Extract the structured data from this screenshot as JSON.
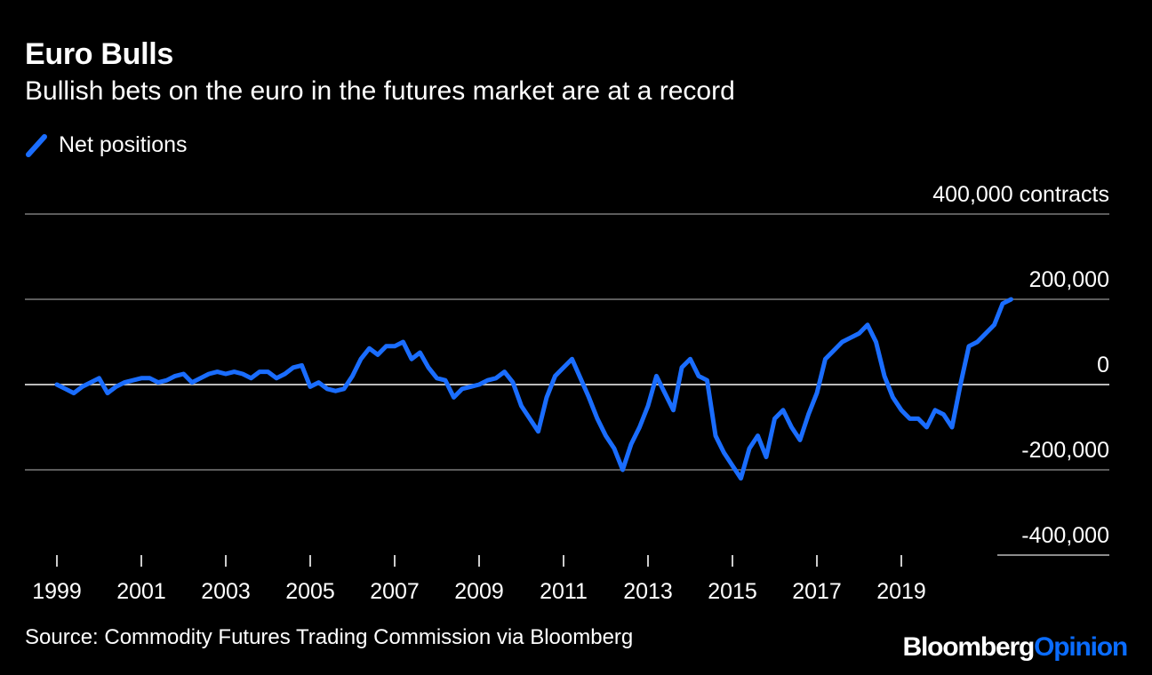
{
  "colors": {
    "line": "#1a6dff",
    "grid": "#7a7a7a",
    "background": "#000000",
    "brand_accent": "#0a6cff"
  },
  "chart_data": {
    "type": "line",
    "title": "Euro Bulls",
    "subtitle": "Bullish bets on the euro in the futures market are at a record",
    "ylabel": "",
    "xlabel": "",
    "ylim": [
      -400000,
      400000
    ],
    "xlim": [
      1999,
      2021.9
    ],
    "y_ticks": [
      400000,
      200000,
      0,
      -200000,
      -400000
    ],
    "y_tick_labels": [
      "400,000 contracts",
      "200,000",
      "0",
      "-200,000",
      "-400,000"
    ],
    "x_ticks": [
      1999,
      2001,
      2003,
      2005,
      2007,
      2009,
      2011,
      2013,
      2015,
      2017,
      2019
    ],
    "x_tick_labels": [
      "1999",
      "2001",
      "2003",
      "2005",
      "2007",
      "2009",
      "2011",
      "2013",
      "2015",
      "2017",
      "2019"
    ],
    "grid": true,
    "legend_position": "top-left",
    "series": [
      {
        "name": "Net positions",
        "x": [
          1999.0,
          1999.2,
          1999.4,
          1999.6,
          1999.8,
          2000.0,
          2000.2,
          2000.4,
          2000.6,
          2000.8,
          2001.0,
          2001.2,
          2001.4,
          2001.6,
          2001.8,
          2002.0,
          2002.2,
          2002.4,
          2002.6,
          2002.8,
          2003.0,
          2003.2,
          2003.4,
          2003.6,
          2003.8,
          2004.0,
          2004.2,
          2004.4,
          2004.6,
          2004.8,
          2005.0,
          2005.2,
          2005.4,
          2005.6,
          2005.8,
          2006.0,
          2006.2,
          2006.4,
          2006.6,
          2006.8,
          2007.0,
          2007.2,
          2007.4,
          2007.6,
          2007.8,
          2008.0,
          2008.2,
          2008.4,
          2008.6,
          2008.8,
          2009.0,
          2009.2,
          2009.4,
          2009.6,
          2009.8,
          2010.0,
          2010.2,
          2010.4,
          2010.6,
          2010.8,
          2011.0,
          2011.2,
          2011.4,
          2011.6,
          2011.8,
          2012.0,
          2012.2,
          2012.4,
          2012.6,
          2012.8,
          2013.0,
          2013.2,
          2013.4,
          2013.6,
          2013.8,
          2014.0,
          2014.2,
          2014.4,
          2014.6,
          2014.8,
          2015.0,
          2015.2,
          2015.4,
          2015.6,
          2015.8,
          2016.0,
          2016.2,
          2016.4,
          2016.6,
          2016.8,
          2017.0,
          2017.2,
          2017.4,
          2017.6,
          2017.8,
          2018.0,
          2018.2,
          2018.4,
          2018.6,
          2018.8,
          2019.0,
          2019.2,
          2019.4,
          2019.6,
          2019.8,
          2020.0,
          2020.2,
          2020.4,
          2020.6,
          2020.8,
          2021.0,
          2021.2,
          2021.4,
          2021.6
        ],
        "values": [
          0,
          -10000,
          -20000,
          -5000,
          5000,
          15000,
          -20000,
          -5000,
          5000,
          10000,
          15000,
          15000,
          5000,
          10000,
          20000,
          25000,
          5000,
          15000,
          25000,
          30000,
          25000,
          30000,
          25000,
          15000,
          30000,
          30000,
          15000,
          25000,
          40000,
          45000,
          -5000,
          5000,
          -10000,
          -15000,
          -10000,
          20000,
          60000,
          85000,
          70000,
          90000,
          90000,
          100000,
          60000,
          75000,
          40000,
          15000,
          10000,
          -30000,
          -10000,
          -5000,
          0,
          10000,
          15000,
          30000,
          5000,
          -50000,
          -80000,
          -110000,
          -30000,
          20000,
          40000,
          60000,
          15000,
          -30000,
          -80000,
          -120000,
          -150000,
          -200000,
          -140000,
          -100000,
          -50000,
          20000,
          -20000,
          -60000,
          40000,
          60000,
          20000,
          10000,
          -120000,
          -160000,
          -190000,
          -220000,
          -150000,
          -120000,
          -170000,
          -80000,
          -60000,
          -100000,
          -130000,
          -70000,
          -20000,
          60000,
          80000,
          100000,
          110000,
          120000,
          140000,
          100000,
          20000,
          -30000,
          -60000,
          -80000,
          -80000,
          -100000,
          -60000,
          -70000,
          -100000,
          0,
          90000,
          100000,
          120000,
          140000,
          190000,
          200000
        ]
      }
    ]
  },
  "footer": {
    "source": "Source: Commodity Futures Trading Commission via Bloomberg",
    "brand_part1": "Bloomberg",
    "brand_part2": "Opinion"
  }
}
